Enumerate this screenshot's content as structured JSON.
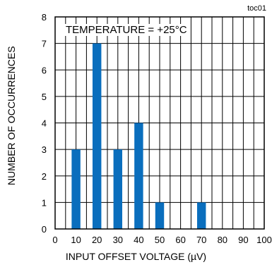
{
  "corner_label": "toc01",
  "chart_data": {
    "type": "bar",
    "annotation": "TEMPERATURE = +25°C",
    "xlabel": "INPUT OFFSET VOLTAGE (µV)",
    "ylabel": "NUMBER OF OCCURRENCES",
    "xlim": [
      0,
      100
    ],
    "ylim": [
      0,
      8
    ],
    "x_ticks": [
      "0",
      "10",
      "20",
      "30",
      "40",
      "50",
      "60",
      "70",
      "80",
      "90",
      "100"
    ],
    "y_ticks": [
      "0",
      "1",
      "2",
      "3",
      "4",
      "5",
      "6",
      "7",
      "8"
    ],
    "x_values": [
      10,
      20,
      30,
      40,
      50,
      70
    ],
    "values": [
      3,
      7,
      3,
      4,
      1,
      1
    ],
    "grid": true,
    "bar_color": "#0a6ebd"
  }
}
